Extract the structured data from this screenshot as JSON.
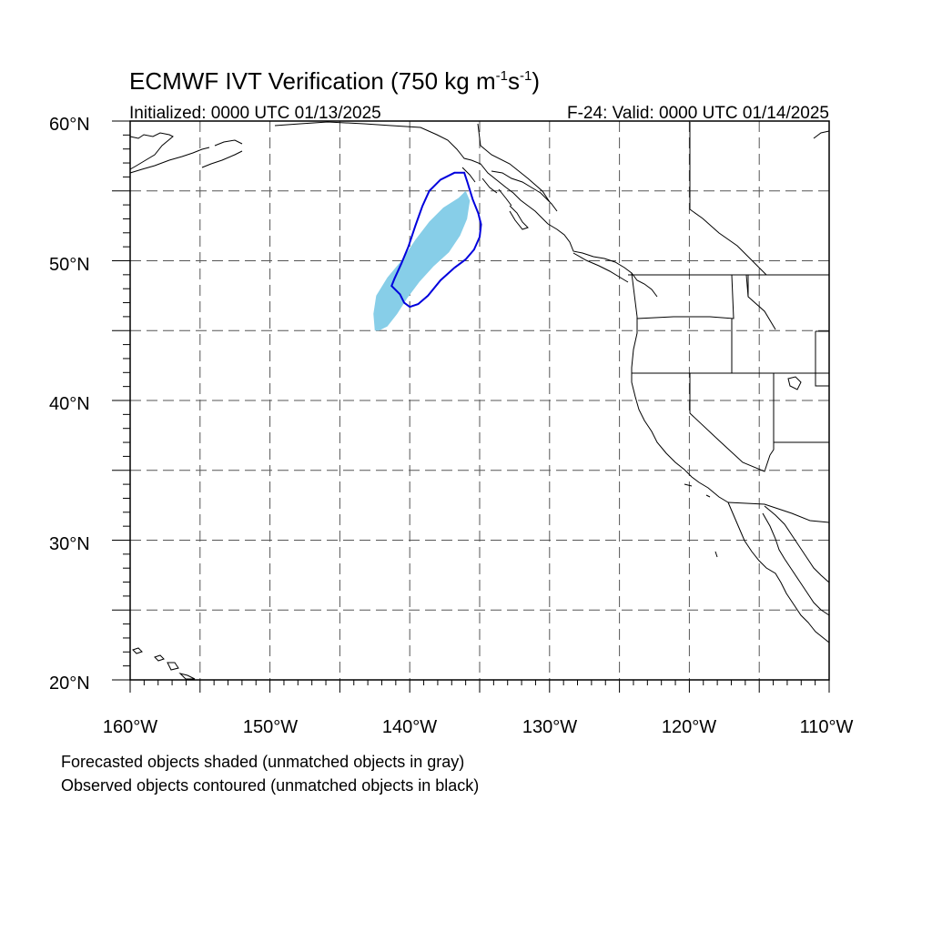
{
  "title": "ECMWF IVT Verification (750 kg m",
  "title_exp1": "-1",
  "title_mid": "s",
  "title_exp2": "-1",
  "title_end": ")",
  "initialized": "Initialized: 0000 UTC 01/13/2025",
  "valid": "F-24: Valid: 0000 UTC 01/14/2025",
  "lat_labels": [
    "60°N",
    "50°N",
    "40°N",
    "30°N",
    "20°N"
  ],
  "lon_labels": [
    "160°W",
    "150°W",
    "140°W",
    "130°W",
    "120°W",
    "110°W"
  ],
  "notes": {
    "forecast": "Forecasted objects shaded (unmatched objects in gray)",
    "observed": "Observed objects contoured (unmatched objects in black)"
  },
  "colors": {
    "forecast_fill": "#87CEE8",
    "observed_contour": "#0000DD",
    "grid": "#555555",
    "coast": "#000000"
  },
  "map": {
    "lon_range": [
      -160,
      -110
    ],
    "lat_range": [
      20,
      60
    ],
    "grid_lon_step": 5,
    "grid_lat_step": 5,
    "forecast_object": [
      [
        -142.5,
        45.0
      ],
      [
        -142.6,
        46.2
      ],
      [
        -142.4,
        47.5
      ],
      [
        -141.6,
        48.8
      ],
      [
        -140.6,
        50.0
      ],
      [
        -139.6,
        51.5
      ],
      [
        -138.6,
        52.8
      ],
      [
        -137.6,
        53.8
      ],
      [
        -136.5,
        54.5
      ],
      [
        -136.0,
        55.0
      ],
      [
        -135.7,
        54.3
      ],
      [
        -135.9,
        53.0
      ],
      [
        -136.4,
        51.8
      ],
      [
        -137.2,
        50.6
      ],
      [
        -138.3,
        49.6
      ],
      [
        -139.3,
        48.5
      ],
      [
        -140.2,
        47.3
      ],
      [
        -140.9,
        46.2
      ],
      [
        -141.6,
        45.3
      ],
      [
        -142.2,
        45.0
      ]
    ],
    "observed_object": [
      [
        -140.0,
        46.7
      ],
      [
        -139.4,
        46.9
      ],
      [
        -138.7,
        47.5
      ],
      [
        -137.8,
        48.6
      ],
      [
        -136.8,
        49.5
      ],
      [
        -136.0,
        50.1
      ],
      [
        -135.4,
        50.8
      ],
      [
        -135.0,
        51.7
      ],
      [
        -134.9,
        52.6
      ],
      [
        -135.1,
        53.4
      ],
      [
        -135.5,
        54.4
      ],
      [
        -135.9,
        55.7
      ],
      [
        -136.1,
        56.3
      ],
      [
        -136.8,
        56.3
      ],
      [
        -137.8,
        55.8
      ],
      [
        -138.6,
        55.0
      ],
      [
        -139.1,
        53.9
      ],
      [
        -139.6,
        52.5
      ],
      [
        -140.1,
        51.0
      ],
      [
        -140.6,
        49.8
      ],
      [
        -141.1,
        48.7
      ],
      [
        -141.3,
        48.2
      ],
      [
        -140.7,
        47.6
      ],
      [
        -140.4,
        47.0
      ]
    ]
  }
}
